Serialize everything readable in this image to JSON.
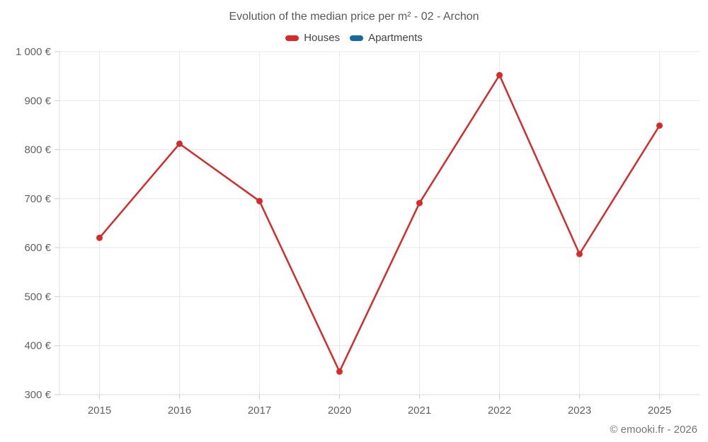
{
  "footer": "© emooki.fr - 2026",
  "chart_data": {
    "type": "line",
    "title": "Evolution of the median price per m² - 02 - Archon",
    "categories": [
      "2015",
      "2016",
      "2017",
      "2020",
      "2021",
      "2022",
      "2023",
      "2025"
    ],
    "series": [
      {
        "name": "Houses",
        "color": "#d62b2b",
        "values": [
          620,
          812,
          695,
          347,
          691,
          952,
          587,
          849
        ]
      },
      {
        "name": "Apartments",
        "color": "#17699e",
        "values": []
      }
    ],
    "ylim": [
      300,
      1000
    ],
    "y_tick_step": 100,
    "y_ticks": [
      {
        "value": 1000,
        "label": "1 000 €"
      },
      {
        "value": 900,
        "label": "900 €"
      },
      {
        "value": 800,
        "label": "800 €"
      },
      {
        "value": 700,
        "label": "700 €"
      },
      {
        "value": 600,
        "label": "600 €"
      },
      {
        "value": 500,
        "label": "500 €"
      },
      {
        "value": 400,
        "label": "400 €"
      },
      {
        "value": 300,
        "label": "300 €"
      }
    ],
    "ylabel": "",
    "xlabel": "",
    "grid": true,
    "legend_position": "top"
  }
}
